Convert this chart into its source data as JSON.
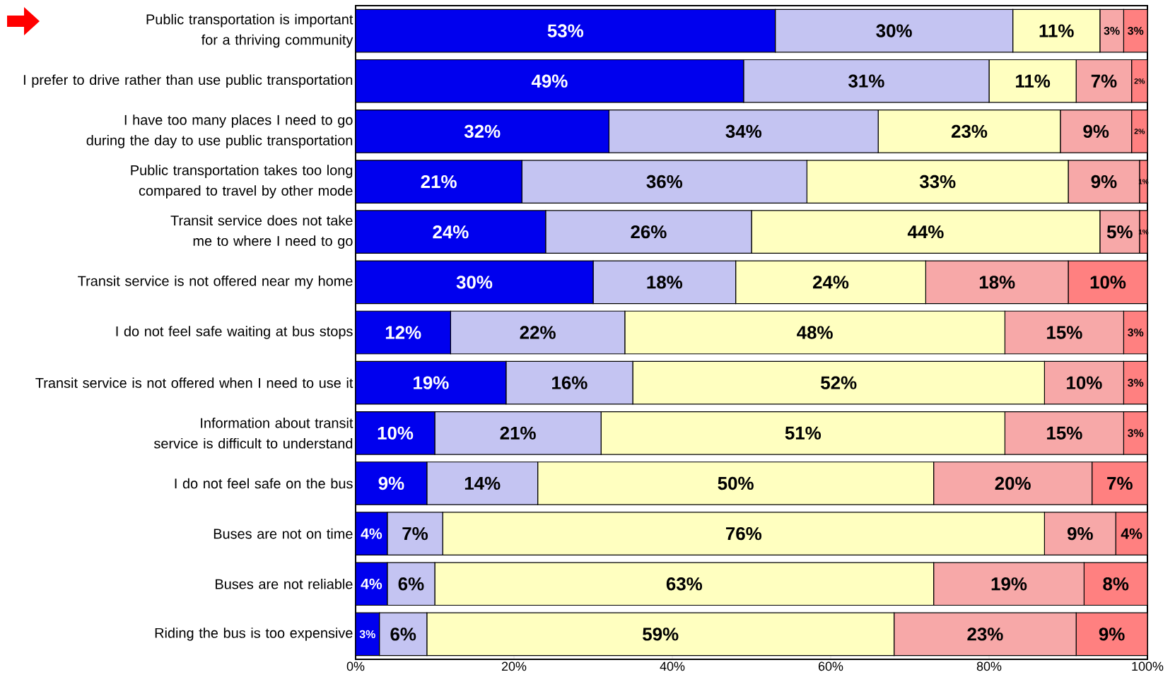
{
  "chart_data": {
    "type": "bar",
    "orientation": "horizontal",
    "stacked": true,
    "categories": [
      "Public transportation is important for a thriving community",
      "I prefer to drive rather than use public transportation",
      "I have too many places I need to go during the day to use public transportation",
      "Public transportation takes too long compared to travel by other mode",
      "Transit service does not take me to where I need to go",
      "Transit service is not offered near my home",
      "I do not feel safe waiting at bus stops",
      "Transit service is not offered when I need to use it",
      "Information about transit service is difficult to understand",
      "I do not feel safe on the bus",
      "Buses are not on time",
      "Buses are not reliable",
      "Riding the bus is too expensive"
    ],
    "series": [
      {
        "color": "#0000ee",
        "values": [
          53,
          49,
          32,
          21,
          24,
          30,
          12,
          19,
          10,
          9,
          4,
          4,
          3
        ],
        "value_labels": [
          "53%",
          "49%",
          "32%",
          "21%",
          "24%",
          "30%",
          "12%",
          "19%",
          "10%",
          "9%",
          "4%",
          "4%",
          "3%"
        ]
      },
      {
        "color": "#c4c4f2",
        "values": [
          30,
          31,
          34,
          36,
          26,
          18,
          22,
          16,
          21,
          14,
          7,
          6,
          6
        ],
        "value_labels": [
          "30%",
          "31%",
          "34%",
          "36%",
          "26%",
          "18%",
          "22%",
          "16%",
          "21%",
          "14%",
          "7%",
          "6%",
          "6%"
        ]
      },
      {
        "color": "#ffffc0",
        "values": [
          11,
          11,
          23,
          33,
          44,
          24,
          48,
          52,
          51,
          50,
          76,
          63,
          59
        ],
        "value_labels": [
          "11%",
          "11%",
          "23%",
          "33%",
          "44%",
          "24%",
          "48%",
          "52%",
          "51%",
          "50%",
          "76%",
          "63%",
          "59%"
        ]
      },
      {
        "color": "#f7a8a8",
        "values": [
          3,
          7,
          9,
          9,
          5,
          18,
          15,
          10,
          15,
          20,
          9,
          19,
          23
        ],
        "value_labels": [
          "3%",
          "7%",
          "9%",
          "9%",
          "5%",
          "18%",
          "15%",
          "10%",
          "15%",
          "20%",
          "9%",
          "19%",
          "23%"
        ]
      },
      {
        "color": "#ff8080",
        "values": [
          3,
          2,
          2,
          1,
          1,
          10,
          3,
          3,
          3,
          7,
          4,
          8,
          9
        ],
        "value_labels": [
          "3%",
          "2%",
          "2%",
          "1%",
          "1%",
          "10%",
          "3%",
          "3%",
          "3%",
          "7%",
          "4%",
          "8%",
          "9%"
        ]
      }
    ],
    "xlim": [
      0,
      100
    ],
    "xticks": [
      {
        "value": 0,
        "label": "0%"
      },
      {
        "value": 20,
        "label": "20%"
      },
      {
        "value": 40,
        "label": "40%"
      },
      {
        "value": 60,
        "label": "60%"
      },
      {
        "value": 80,
        "label": "80%"
      },
      {
        "value": 100,
        "label": "100%"
      }
    ]
  }
}
